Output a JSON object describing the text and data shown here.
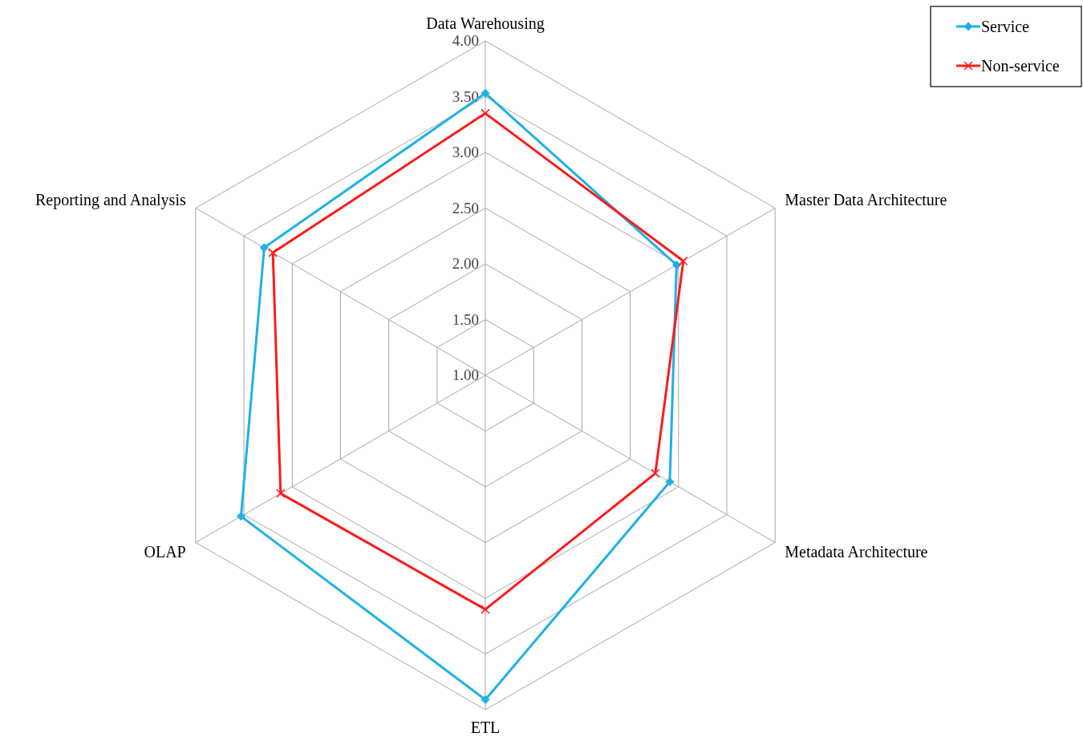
{
  "chart_data": {
    "type": "radar",
    "categories": [
      "Data Warehousing",
      "Master Data Architecture",
      "Metadata Architecture",
      "ETL",
      "OLAP",
      "Reporting and Analysis"
    ],
    "series": [
      {
        "name": "Service",
        "color": "#1fb1e6",
        "marker": "diamond",
        "values": [
          3.53,
          2.98,
          2.91,
          3.91,
          3.53,
          3.29
        ]
      },
      {
        "name": "Non-service",
        "color": "#ff1a1a",
        "marker": "cross",
        "values": [
          3.35,
          3.05,
          2.76,
          3.1,
          3.12,
          3.2
        ]
      }
    ],
    "ylim": [
      1,
      4
    ],
    "yticks": [
      {
        "value": 1,
        "label": "1.00"
      },
      {
        "value": 1.5,
        "label": "1.50"
      },
      {
        "value": 2,
        "label": "2.00"
      },
      {
        "value": 2.5,
        "label": "2.50"
      },
      {
        "value": 3,
        "label": "3.00"
      },
      {
        "value": 3.5,
        "label": "3.50"
      },
      {
        "value": 4,
        "label": "4.00"
      }
    ],
    "grid": true,
    "legend": "top right",
    "line_style": "solid"
  }
}
